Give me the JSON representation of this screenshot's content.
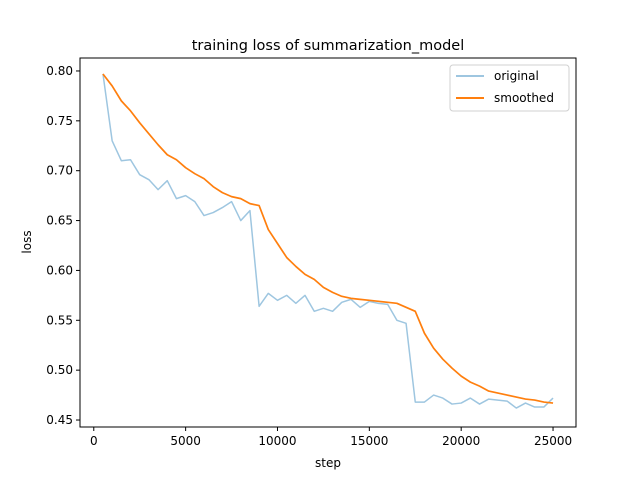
{
  "chart_data": {
    "type": "line",
    "title": "training loss of summarization_model",
    "xlabel": "step",
    "ylabel": "loss",
    "xlim": [
      -750,
      26250
    ],
    "ylim": [
      0.443,
      0.813
    ],
    "xticks": [
      0,
      5000,
      10000,
      15000,
      20000,
      25000
    ],
    "xtick_labels": [
      "0",
      "5000",
      "10000",
      "15000",
      "20000",
      "25000"
    ],
    "yticks": [
      0.45,
      0.5,
      0.55,
      0.6,
      0.65,
      0.7,
      0.75,
      0.8
    ],
    "ytick_labels": [
      "0.45",
      "0.50",
      "0.55",
      "0.60",
      "0.65",
      "0.70",
      "0.75",
      "0.80"
    ],
    "grid": false,
    "legend_position": "top-right",
    "x": [
      500,
      1000,
      1500,
      2000,
      2500,
      3000,
      3500,
      4000,
      4500,
      5000,
      5500,
      6000,
      6500,
      7000,
      7500,
      8000,
      8500,
      9000,
      9500,
      10000,
      10500,
      11000,
      11500,
      12000,
      12500,
      13000,
      13500,
      14000,
      14500,
      15000,
      15500,
      16000,
      16500,
      17000,
      17500,
      18000,
      18500,
      19000,
      19500,
      20000,
      20500,
      21000,
      21500,
      22000,
      22500,
      23000,
      23500,
      24000,
      24500,
      25000
    ],
    "series": [
      {
        "name": "original",
        "color": "#9ec6e0",
        "values": [
          0.797,
          0.73,
          0.71,
          0.711,
          0.696,
          0.691,
          0.681,
          0.69,
          0.672,
          0.675,
          0.669,
          0.655,
          0.658,
          0.663,
          0.669,
          0.65,
          0.66,
          0.564,
          0.577,
          0.57,
          0.575,
          0.567,
          0.575,
          0.559,
          0.562,
          0.559,
          0.568,
          0.571,
          0.563,
          0.569,
          0.567,
          0.566,
          0.55,
          0.547,
          0.468,
          0.468,
          0.475,
          0.472,
          0.466,
          0.467,
          0.472,
          0.466,
          0.471,
          0.47,
          0.469,
          0.462,
          0.467,
          0.463,
          0.463,
          0.472
        ]
      },
      {
        "name": "smoothed",
        "color": "#ff7f0e",
        "values": [
          0.797,
          0.785,
          0.77,
          0.76,
          0.748,
          0.737,
          0.726,
          0.716,
          0.711,
          0.703,
          0.697,
          0.692,
          0.684,
          0.678,
          0.674,
          0.672,
          0.667,
          0.665,
          0.641,
          0.627,
          0.613,
          0.604,
          0.596,
          0.591,
          0.583,
          0.578,
          0.574,
          0.572,
          0.571,
          0.57,
          0.569,
          0.568,
          0.567,
          0.563,
          0.559,
          0.537,
          0.522,
          0.511,
          0.502,
          0.494,
          0.488,
          0.484,
          0.479,
          0.477,
          0.475,
          0.473,
          0.471,
          0.47,
          0.468,
          0.467
        ]
      }
    ]
  }
}
